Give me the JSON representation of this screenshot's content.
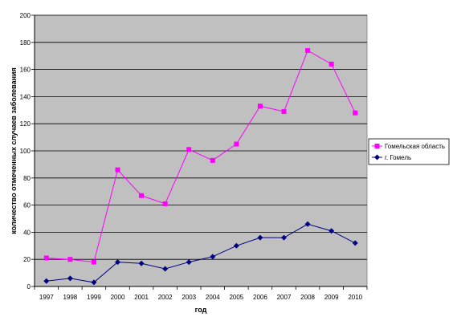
{
  "chart_data": {
    "type": "line",
    "title": "",
    "xlabel": "год",
    "ylabel": "количество отмеченных случаев заболевания",
    "categories": [
      "1997",
      "1998",
      "1999",
      "2000",
      "2001",
      "2002",
      "2003",
      "2004",
      "2005",
      "2006",
      "2007",
      "2008",
      "2009",
      "2010"
    ],
    "ylim": [
      0,
      200
    ],
    "yticks": [
      0,
      20,
      40,
      60,
      80,
      100,
      120,
      140,
      160,
      180,
      200
    ],
    "grid": true,
    "legend_position": "right",
    "plot_background": "#c0c0c0",
    "series": [
      {
        "name": "Гомельская область",
        "color": "#ff00ff",
        "marker": "square",
        "values": [
          21,
          20,
          18,
          86,
          67,
          61,
          101,
          93,
          105,
          133,
          129,
          174,
          164,
          128
        ]
      },
      {
        "name": "г. Гомель",
        "color": "#000080",
        "marker": "diamond",
        "values": [
          4,
          6,
          3,
          18,
          17,
          13,
          18,
          22,
          30,
          36,
          36,
          46,
          41,
          32
        ]
      }
    ]
  }
}
